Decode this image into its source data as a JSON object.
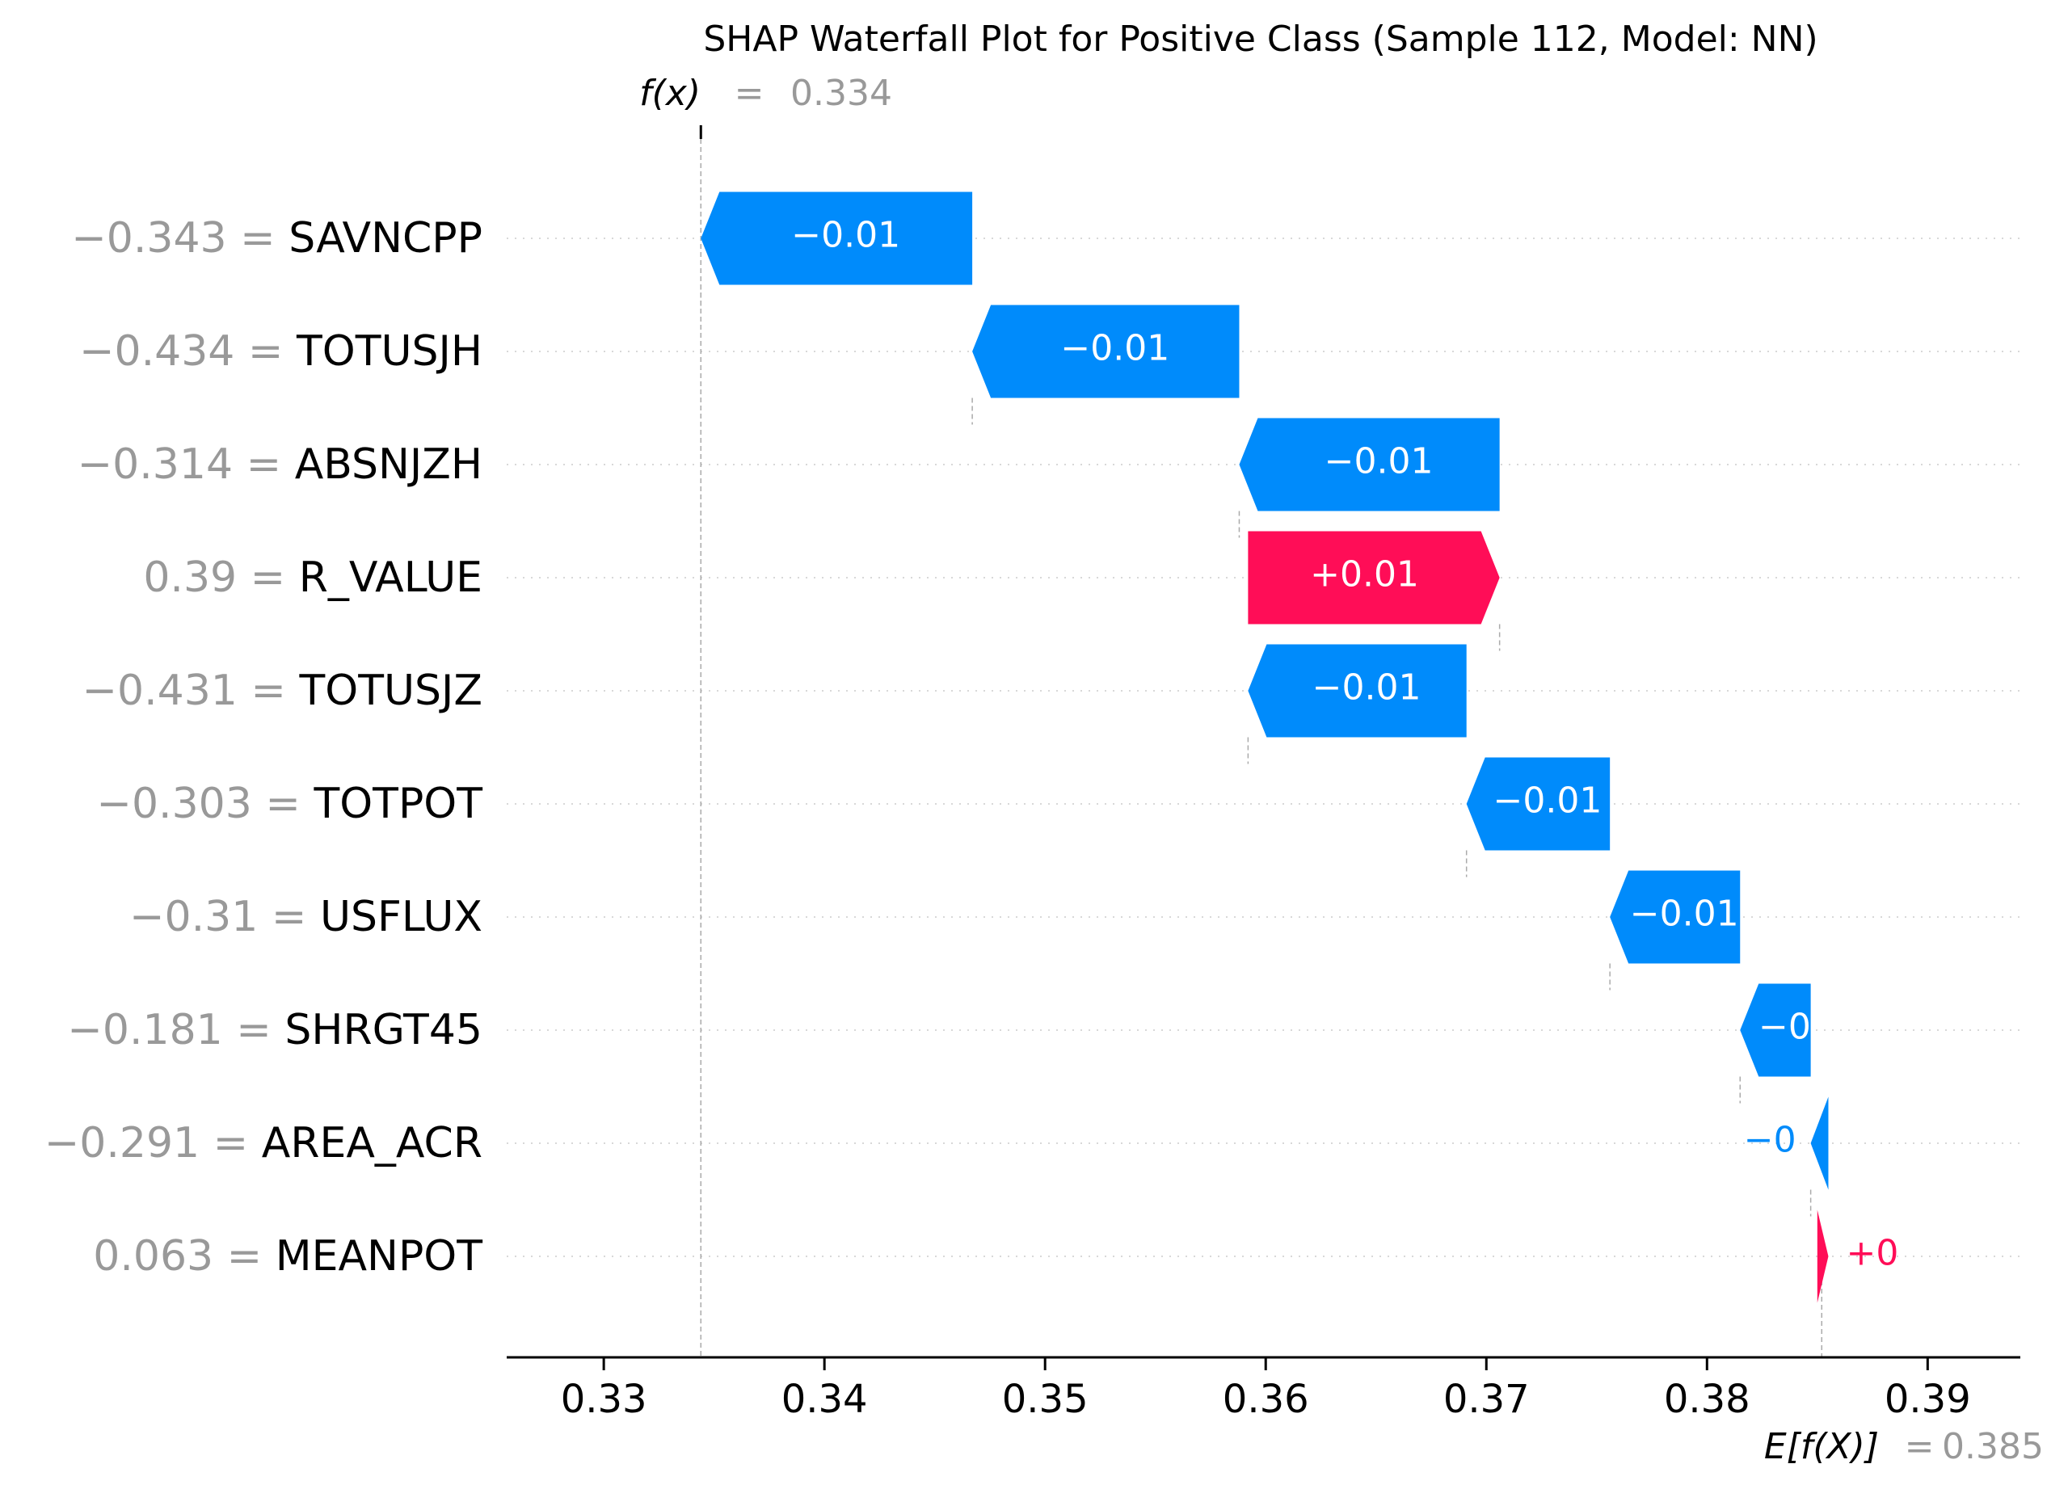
{
  "chart_data": {
    "type": "waterfall",
    "title": "SHAP Waterfall Plot for Positive Class (Sample 112, Model: NN)",
    "fx_label": {
      "name": "f(x)",
      "equals": "=",
      "value": "0.334",
      "numeric": 0.3344
    },
    "efx_label": {
      "name": "E[f(X)]",
      "equals": "=",
      "value": "0.385",
      "numeric": 0.3852
    },
    "xlim": [
      0.3256,
      0.3942
    ],
    "x_ticks": [
      0.33,
      0.34,
      0.35,
      0.36,
      0.37,
      0.38,
      0.39
    ],
    "x_tick_labels": [
      "0.33",
      "0.34",
      "0.35",
      "0.36",
      "0.37",
      "0.38",
      "0.39"
    ],
    "grid": "horizontal dotted per feature row",
    "colors": {
      "positive": "#ff0d57",
      "negative": "#008bfb",
      "feature_value": "#999999",
      "feature_name": "#000000",
      "axis": "#000000",
      "grid": "#cccccc",
      "title": "#000000"
    },
    "features": [
      {
        "value_label": "−0.343",
        "name": "SAVNCPP",
        "shap_label": "−0.01",
        "start": 0.3467,
        "end": 0.3344
      },
      {
        "value_label": "−0.434",
        "name": "TOTUSJH",
        "shap_label": "−0.01",
        "start": 0.3588,
        "end": 0.3467
      },
      {
        "value_label": "−0.314",
        "name": "ABSNJZH",
        "shap_label": "−0.01",
        "start": 0.3706,
        "end": 0.3588
      },
      {
        "value_label": "0.39",
        "name": "R_VALUE",
        "shap_label": "+0.01",
        "start": 0.3592,
        "end": 0.3706
      },
      {
        "value_label": "−0.431",
        "name": "TOTUSJZ",
        "shap_label": "−0.01",
        "start": 0.3691,
        "end": 0.3592
      },
      {
        "value_label": "−0.303",
        "name": "TOTPOT",
        "shap_label": "−0.01",
        "start": 0.3756,
        "end": 0.3691
      },
      {
        "value_label": "−0.31",
        "name": "USFLUX",
        "shap_label": "−0.01",
        "start": 0.3815,
        "end": 0.3756
      },
      {
        "value_label": "−0.181",
        "name": "SHRGT45",
        "shap_label": "−0",
        "start": 0.3847,
        "end": 0.3815
      },
      {
        "value_label": "−0.291",
        "name": "AREA_ACR",
        "shap_label": "−0",
        "start": 0.3855,
        "end": 0.3847
      },
      {
        "value_label": "0.063",
        "name": "MEANPOT",
        "shap_label": "+0",
        "start": 0.385,
        "end": 0.3855
      }
    ]
  }
}
